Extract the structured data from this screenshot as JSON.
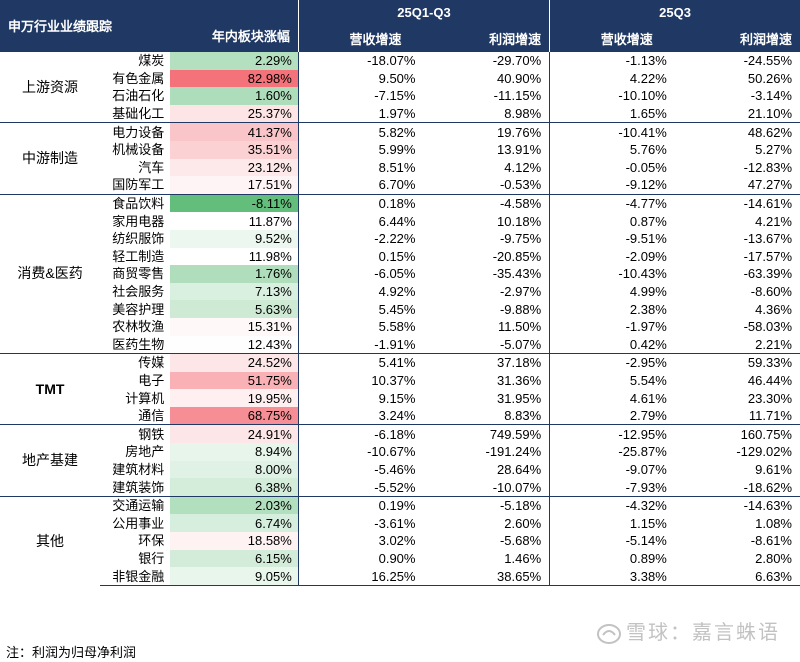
{
  "header": {
    "col_industry": "申万行业业绩跟踪",
    "col_change": "年内板块涨幅",
    "period1": "25Q1-Q3",
    "period2": "25Q3",
    "rev": "营收增速",
    "profit": "利润增速"
  },
  "groups": [
    {
      "name": "上游资源",
      "rows": [
        {
          "ind": "煤炭",
          "chg": "2.29%",
          "chg_val": 2.29,
          "r1": "-18.07%",
          "p1": "-29.70%",
          "r2": "-1.13%",
          "p2": "-24.55%"
        },
        {
          "ind": "有色金属",
          "chg": "82.98%",
          "chg_val": 82.98,
          "r1": "9.50%",
          "p1": "40.90%",
          "r2": "4.22%",
          "p2": "50.26%"
        },
        {
          "ind": "石油石化",
          "chg": "1.60%",
          "chg_val": 1.6,
          "r1": "-7.15%",
          "p1": "-11.15%",
          "r2": "-10.10%",
          "p2": "-3.14%"
        },
        {
          "ind": "基础化工",
          "chg": "25.37%",
          "chg_val": 25.37,
          "r1": "1.97%",
          "p1": "8.98%",
          "r2": "1.65%",
          "p2": "21.10%"
        }
      ]
    },
    {
      "name": "中游制造",
      "rows": [
        {
          "ind": "电力设备",
          "chg": "41.37%",
          "chg_val": 41.37,
          "r1": "5.82%",
          "p1": "19.76%",
          "r2": "-10.41%",
          "p2": "48.62%"
        },
        {
          "ind": "机械设备",
          "chg": "35.51%",
          "chg_val": 35.51,
          "r1": "5.99%",
          "p1": "13.91%",
          "r2": "5.76%",
          "p2": "5.27%"
        },
        {
          "ind": "汽车",
          "chg": "23.12%",
          "chg_val": 23.12,
          "r1": "8.51%",
          "p1": "4.12%",
          "r2": "-0.05%",
          "p2": "-12.83%"
        },
        {
          "ind": "国防军工",
          "chg": "17.51%",
          "chg_val": 17.51,
          "r1": "6.70%",
          "p1": "-0.53%",
          "r2": "-9.12%",
          "p2": "47.27%"
        }
      ]
    },
    {
      "name": "消费&医药",
      "rows": [
        {
          "ind": "食品饮料",
          "chg": "-8.11%",
          "chg_val": -8.11,
          "r1": "0.18%",
          "p1": "-4.58%",
          "r2": "-4.77%",
          "p2": "-14.61%"
        },
        {
          "ind": "家用电器",
          "chg": "11.87%",
          "chg_val": 11.87,
          "r1": "6.44%",
          "p1": "10.18%",
          "r2": "0.87%",
          "p2": "4.21%"
        },
        {
          "ind": "纺织服饰",
          "chg": "9.52%",
          "chg_val": 9.52,
          "r1": "-2.22%",
          "p1": "-9.75%",
          "r2": "-9.51%",
          "p2": "-13.67%"
        },
        {
          "ind": "轻工制造",
          "chg": "11.98%",
          "chg_val": 11.98,
          "r1": "0.15%",
          "p1": "-20.85%",
          "r2": "-2.09%",
          "p2": "-17.57%"
        },
        {
          "ind": "商贸零售",
          "chg": "1.76%",
          "chg_val": 1.76,
          "r1": "-6.05%",
          "p1": "-35.43%",
          "r2": "-10.43%",
          "p2": "-63.39%"
        },
        {
          "ind": "社会服务",
          "chg": "7.13%",
          "chg_val": 7.13,
          "r1": "4.92%",
          "p1": "-2.97%",
          "r2": "4.99%",
          "p2": "-8.60%"
        },
        {
          "ind": "美容护理",
          "chg": "5.63%",
          "chg_val": 5.63,
          "r1": "5.45%",
          "p1": "-9.88%",
          "r2": "2.38%",
          "p2": "4.36%"
        },
        {
          "ind": "农林牧渔",
          "chg": "15.31%",
          "chg_val": 15.31,
          "r1": "5.58%",
          "p1": "11.50%",
          "r2": "-1.97%",
          "p2": "-58.03%"
        },
        {
          "ind": "医药生物",
          "chg": "12.43%",
          "chg_val": 12.43,
          "r1": "-1.91%",
          "p1": "-5.07%",
          "r2": "0.42%",
          "p2": "2.21%"
        }
      ]
    },
    {
      "name": "TMT",
      "rows": [
        {
          "ind": "传媒",
          "chg": "24.52%",
          "chg_val": 24.52,
          "r1": "5.41%",
          "p1": "37.18%",
          "r2": "-2.95%",
          "p2": "59.33%"
        },
        {
          "ind": "电子",
          "chg": "51.75%",
          "chg_val": 51.75,
          "r1": "10.37%",
          "p1": "31.36%",
          "r2": "5.54%",
          "p2": "46.44%"
        },
        {
          "ind": "计算机",
          "chg": "19.95%",
          "chg_val": 19.95,
          "r1": "9.15%",
          "p1": "31.95%",
          "r2": "4.61%",
          "p2": "23.30%"
        },
        {
          "ind": "通信",
          "chg": "68.75%",
          "chg_val": 68.75,
          "r1": "3.24%",
          "p1": "8.83%",
          "r2": "2.79%",
          "p2": "11.71%"
        }
      ]
    },
    {
      "name": "地产基建",
      "rows": [
        {
          "ind": "钢铁",
          "chg": "24.91%",
          "chg_val": 24.91,
          "r1": "-6.18%",
          "p1": "749.59%",
          "r2": "-12.95%",
          "p2": "160.75%"
        },
        {
          "ind": "房地产",
          "chg": "8.94%",
          "chg_val": 8.94,
          "r1": "-10.67%",
          "p1": "-191.24%",
          "r2": "-25.87%",
          "p2": "-129.02%"
        },
        {
          "ind": "建筑材料",
          "chg": "8.00%",
          "chg_val": 8.0,
          "r1": "-5.46%",
          "p1": "28.64%",
          "r2": "-9.07%",
          "p2": "9.61%"
        },
        {
          "ind": "建筑装饰",
          "chg": "6.38%",
          "chg_val": 6.38,
          "r1": "-5.52%",
          "p1": "-10.07%",
          "r2": "-7.93%",
          "p2": "-18.62%"
        }
      ]
    },
    {
      "name": "其他",
      "rows": [
        {
          "ind": "交通运输",
          "chg": "2.03%",
          "chg_val": 2.03,
          "r1": "0.19%",
          "p1": "-5.18%",
          "r2": "-4.32%",
          "p2": "-14.63%"
        },
        {
          "ind": "公用事业",
          "chg": "6.74%",
          "chg_val": 6.74,
          "r1": "-3.61%",
          "p1": "2.60%",
          "r2": "1.15%",
          "p2": "1.08%"
        },
        {
          "ind": "环保",
          "chg": "18.58%",
          "chg_val": 18.58,
          "r1": "3.02%",
          "p1": "-5.68%",
          "r2": "-5.14%",
          "p2": "-8.61%"
        },
        {
          "ind": "银行",
          "chg": "6.15%",
          "chg_val": 6.15,
          "r1": "0.90%",
          "p1": "1.46%",
          "r2": "0.89%",
          "p2": "2.80%"
        },
        {
          "ind": "非银金融",
          "chg": "9.05%",
          "chg_val": 9.05,
          "r1": "16.25%",
          "p1": "38.65%",
          "r2": "3.38%",
          "p2": "6.63%"
        }
      ]
    }
  ],
  "note": "注：利润为归母净利润",
  "watermark": "雪球：嘉言蛛语",
  "colors": {
    "header_bg": "#1f3864",
    "high_red": "#f4737a",
    "low_green": "#63be7b",
    "mid": "#ffffff"
  }
}
